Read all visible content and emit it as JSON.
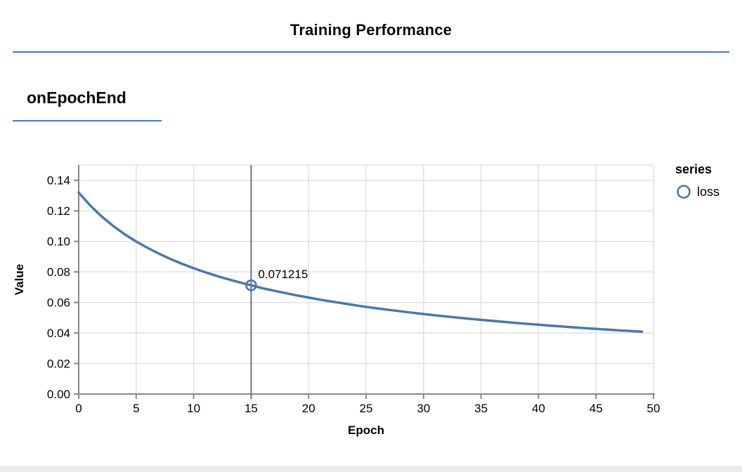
{
  "header": {
    "title": "Training Performance"
  },
  "section": {
    "title": "onEpochEnd"
  },
  "legend": {
    "title": "series",
    "items": [
      {
        "label": "loss",
        "color": "#4c78a8"
      }
    ]
  },
  "tooltip": {
    "value": "0.071215",
    "epoch": 15
  },
  "colors": {
    "accent": "#4377d6",
    "series": "#4c78a8",
    "grid": "#dddddd",
    "axis": "#888888",
    "crosshair": "#737373",
    "text": "#000000",
    "bottom_bar": "#ececec"
  },
  "chart_data": {
    "type": "line",
    "title": "onEpochEnd",
    "xlabel": "Epoch",
    "ylabel": "Value",
    "xlim": [
      0,
      50
    ],
    "ylim": [
      0,
      0.15
    ],
    "x_ticks": [
      0,
      5,
      10,
      15,
      20,
      25,
      30,
      35,
      40,
      45,
      50
    ],
    "y_ticks": [
      0.0,
      0.02,
      0.04,
      0.06,
      0.08,
      0.1,
      0.12,
      0.14
    ],
    "grid": true,
    "legend_position": "right",
    "series": [
      {
        "name": "loss",
        "color": "#4c78a8",
        "x": [
          0,
          1,
          2,
          3,
          4,
          5,
          6,
          7,
          8,
          9,
          10,
          11,
          12,
          13,
          14,
          15,
          16,
          17,
          18,
          19,
          20,
          21,
          22,
          23,
          24,
          25,
          26,
          27,
          28,
          29,
          30,
          31,
          32,
          33,
          34,
          35,
          36,
          37,
          38,
          39,
          40,
          41,
          42,
          43,
          44,
          45,
          46,
          47,
          48,
          49
        ],
        "values": [
          0.132,
          0.1235,
          0.1163,
          0.1101,
          0.1047,
          0.0999,
          0.0957,
          0.0919,
          0.0884,
          0.0853,
          0.0824,
          0.0798,
          0.0774,
          0.0752,
          0.0731,
          0.071215,
          0.0693,
          0.0677,
          0.0661,
          0.0646,
          0.0632,
          0.0618,
          0.0606,
          0.0594,
          0.0582,
          0.0571,
          0.0561,
          0.0551,
          0.0542,
          0.0533,
          0.0524,
          0.0516,
          0.0508,
          0.05,
          0.0493,
          0.0486,
          0.0479,
          0.0473,
          0.0466,
          0.046,
          0.0454,
          0.0448,
          0.0443,
          0.0437,
          0.0432,
          0.0427,
          0.0422,
          0.0417,
          0.0413,
          0.0408
        ]
      }
    ],
    "annotation": {
      "x": 15,
      "y": 0.071215,
      "label": "0.071215"
    }
  }
}
